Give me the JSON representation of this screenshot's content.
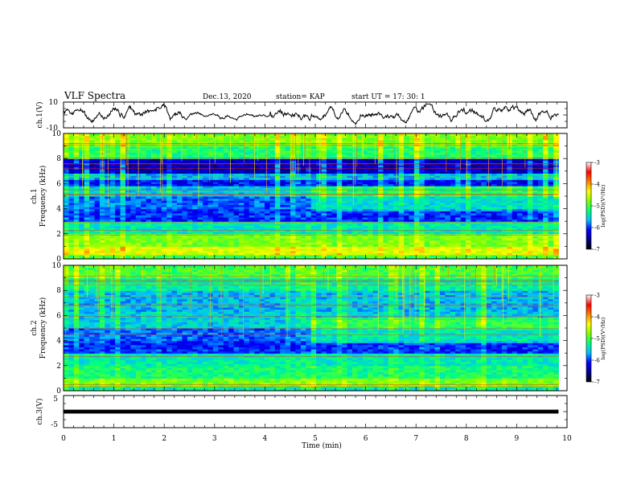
{
  "header": {
    "title": "VLF Spectra",
    "date": "Dec.13, 2020",
    "station": "station= KAP",
    "start": "start  UT =   17: 30: 1"
  },
  "chart_data": [
    {
      "type": "line",
      "name": "ch1-waveform",
      "ylabel": "ch.1(V)",
      "ylim": [
        -10,
        10
      ],
      "yticks": [
        "10",
        "-10"
      ],
      "xlim": [
        0,
        10
      ],
      "x_end": 9.83
    },
    {
      "type": "heatmap",
      "name": "ch1-spectrogram",
      "ylabel_top": "ch.1",
      "ylabel": "Frequency (kHz)",
      "ylim": [
        0,
        10
      ],
      "yticks": [
        "0",
        "2",
        "4",
        "6",
        "8",
        "10"
      ],
      "xlim": [
        0,
        10
      ],
      "x_end": 9.83,
      "colorbar": {
        "label": "log(PSD)(V²/Hz)",
        "range": [
          -7,
          -3
        ],
        "ticks": [
          "-3",
          "-4",
          "-5",
          "-6",
          "-7"
        ],
        "colors": [
          "#000000",
          "#00008b",
          "#0000ff",
          "#00bfff",
          "#00ff80",
          "#7fff00",
          "#ffff00",
          "#ff8000",
          "#ff0000",
          "#ffffff"
        ]
      },
      "bands": [
        {
          "f0": 9.0,
          "f1": 10.0,
          "level": 0.55
        },
        {
          "f0": 8.0,
          "f1": 9.0,
          "level": 0.46
        },
        {
          "f0": 6.9,
          "f1": 8.0,
          "level": 0.16
        },
        {
          "f0": 6.3,
          "f1": 6.9,
          "level": 0.34
        },
        {
          "f0": 5.8,
          "f1": 6.3,
          "level": 0.22
        },
        {
          "f0": 5.0,
          "f1": 5.8,
          "level": 0.36
        },
        {
          "f0": 4.0,
          "f1": 5.0,
          "level": 0.28
        },
        {
          "f0": 3.0,
          "f1": 4.0,
          "level": 0.24
        },
        {
          "f0": 2.0,
          "f1": 3.0,
          "level": 0.4
        },
        {
          "f0": 1.0,
          "f1": 2.0,
          "level": 0.55
        },
        {
          "f0": 0.3,
          "f1": 1.0,
          "level": 0.64
        },
        {
          "f0": 0.0,
          "f1": 0.3,
          "level": 0.5
        }
      ],
      "shift": {
        "t": 4.9,
        "f0": 3.8,
        "f1": 5.8,
        "delta": 0.1
      }
    },
    {
      "type": "heatmap",
      "name": "ch2-spectrogram",
      "ylabel_top": "ch.2",
      "ylabel": "Frequency (kHz)",
      "ylim": [
        0,
        10
      ],
      "yticks": [
        "0",
        "2",
        "4",
        "6",
        "8",
        "10"
      ],
      "xlim": [
        0,
        10
      ],
      "x_end": 9.83,
      "colorbar": {
        "label": "log(PSD)(V²/Hz)",
        "range": [
          -7,
          -3
        ],
        "ticks": [
          "-3",
          "-4",
          "-5",
          "-6",
          "-7"
        ],
        "colors": [
          "#000000",
          "#00008b",
          "#0000ff",
          "#00bfff",
          "#00ff80",
          "#7fff00",
          "#ffff00",
          "#ff8000",
          "#ff0000",
          "#ffffff"
        ]
      },
      "bands": [
        {
          "f0": 9.0,
          "f1": 10.0,
          "level": 0.5
        },
        {
          "f0": 8.0,
          "f1": 9.0,
          "level": 0.42
        },
        {
          "f0": 6.4,
          "f1": 8.0,
          "level": 0.34
        },
        {
          "f0": 5.0,
          "f1": 6.4,
          "level": 0.36
        },
        {
          "f0": 4.0,
          "f1": 5.0,
          "level": 0.28
        },
        {
          "f0": 3.0,
          "f1": 4.0,
          "level": 0.24
        },
        {
          "f0": 2.0,
          "f1": 3.0,
          "level": 0.4
        },
        {
          "f0": 1.0,
          "f1": 2.0,
          "level": 0.45
        },
        {
          "f0": 0.3,
          "f1": 1.0,
          "level": 0.55
        },
        {
          "f0": 0.0,
          "f1": 0.3,
          "level": 0.42
        }
      ],
      "shift": {
        "t": 4.9,
        "f0": 3.8,
        "f1": 5.8,
        "delta": 0.12
      }
    },
    {
      "type": "line",
      "name": "ch3-waveform",
      "ylabel": "ch.3(V)",
      "ylim": [
        -5,
        5
      ],
      "yticks": [
        "5",
        "-5"
      ],
      "xlim": [
        0,
        10
      ],
      "x_end": 9.83,
      "band": [
        -0.6,
        0.6
      ]
    }
  ],
  "xaxis": {
    "label": "Time (min)",
    "ticks": [
      "0",
      "1",
      "2",
      "3",
      "4",
      "5",
      "6",
      "7",
      "8",
      "9",
      "10"
    ],
    "range": [
      0,
      10
    ]
  }
}
